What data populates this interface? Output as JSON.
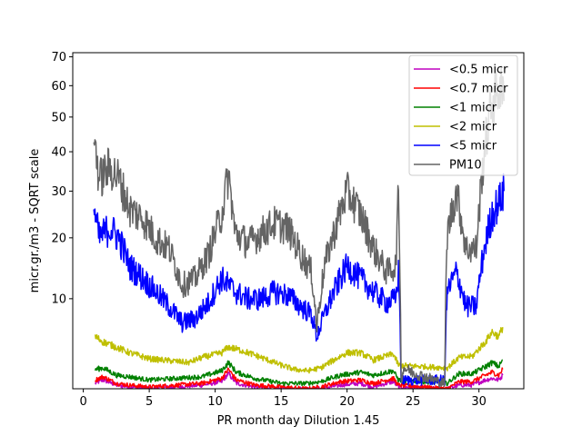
{
  "chart_data": {
    "type": "line",
    "title": "",
    "xlabel": "PR month day  Dilution 1.45",
    "ylabel": "micr.gr./m3 - SQRT scale",
    "y_scale": "sqrt",
    "xlim": [
      -0.8,
      33.4
    ],
    "ylim": [
      1.5,
      71.5
    ],
    "x_ticks": [
      0,
      5,
      10,
      15,
      20,
      25,
      30
    ],
    "y_ticks": [
      10,
      20,
      30,
      40,
      50,
      60,
      70
    ],
    "legend_position": "top-right",
    "grid": false,
    "series": [
      {
        "name": "<0.5 micr",
        "color": "#bf00bf",
        "anchors": [
          [
            0.9,
            1.8
          ],
          [
            1.5,
            2.0
          ],
          [
            2.5,
            1.7
          ],
          [
            3.5,
            1.6
          ],
          [
            5,
            1.5
          ],
          [
            7,
            1.6
          ],
          [
            9,
            1.7
          ],
          [
            10.5,
            1.9
          ],
          [
            11,
            2.4
          ],
          [
            11.6,
            1.8
          ],
          [
            13,
            1.6
          ],
          [
            15,
            1.5
          ],
          [
            17,
            1.5
          ],
          [
            18,
            1.5
          ],
          [
            19.5,
            1.7
          ],
          [
            21,
            1.8
          ],
          [
            22,
            1.6
          ],
          [
            23.5,
            1.9
          ],
          [
            23.9,
            1.6
          ],
          [
            27.6,
            1.5
          ],
          [
            28.5,
            1.7
          ],
          [
            29.5,
            1.7
          ],
          [
            30.5,
            2.0
          ],
          [
            31,
            2.1
          ],
          [
            31.5,
            2.0
          ],
          [
            31.8,
            2.3
          ]
        ]
      },
      {
        "name": "<0.7 micr",
        "color": "#ff0000",
        "anchors": [
          [
            0.9,
            2.0
          ],
          [
            1.5,
            2.2
          ],
          [
            2.5,
            1.8
          ],
          [
            3.5,
            1.7
          ],
          [
            5,
            1.6
          ],
          [
            7,
            1.7
          ],
          [
            9,
            1.8
          ],
          [
            10.5,
            2.1
          ],
          [
            11,
            2.7
          ],
          [
            11.6,
            2.0
          ],
          [
            13,
            1.7
          ],
          [
            15,
            1.6
          ],
          [
            17,
            1.5
          ],
          [
            18,
            1.6
          ],
          [
            19.5,
            1.9
          ],
          [
            21,
            2.0
          ],
          [
            22,
            1.8
          ],
          [
            23.5,
            2.1
          ],
          [
            23.9,
            1.7
          ],
          [
            27.6,
            1.5
          ],
          [
            28.5,
            1.9
          ],
          [
            29.5,
            1.9
          ],
          [
            30.5,
            2.3
          ],
          [
            31,
            2.5
          ],
          [
            31.5,
            2.3
          ],
          [
            31.8,
            2.7
          ]
        ]
      },
      {
        "name": "<1 micr",
        "color": "#008000",
        "anchors": [
          [
            0.9,
            2.7
          ],
          [
            1.5,
            2.8
          ],
          [
            2.5,
            2.3
          ],
          [
            3.5,
            2.2
          ],
          [
            5,
            2.0
          ],
          [
            7,
            2.1
          ],
          [
            9,
            2.2
          ],
          [
            10.5,
            2.6
          ],
          [
            11,
            3.2
          ],
          [
            11.6,
            2.5
          ],
          [
            13,
            2.1
          ],
          [
            15,
            1.8
          ],
          [
            17,
            1.8
          ],
          [
            18,
            1.9
          ],
          [
            19.5,
            2.3
          ],
          [
            21,
            2.5
          ],
          [
            22,
            2.3
          ],
          [
            23.5,
            2.6
          ],
          [
            23.9,
            2.0
          ],
          [
            27.6,
            1.8
          ],
          [
            28.5,
            2.4
          ],
          [
            29.5,
            2.4
          ],
          [
            30.5,
            2.9
          ],
          [
            31,
            3.2
          ],
          [
            31.5,
            2.9
          ],
          [
            31.8,
            3.4
          ]
        ]
      },
      {
        "name": "<2 micr",
        "color": "#bfbf00",
        "anchors": [
          [
            0.9,
            5.5
          ],
          [
            1.5,
            5.0
          ],
          [
            2.5,
            4.5
          ],
          [
            3.5,
            4.0
          ],
          [
            5,
            3.5
          ],
          [
            6,
            3.4
          ],
          [
            7,
            3.3
          ],
          [
            8,
            3.2
          ],
          [
            9,
            3.6
          ],
          [
            10.5,
            4.0
          ],
          [
            11,
            4.5
          ],
          [
            12,
            4.2
          ],
          [
            13,
            3.8
          ],
          [
            14,
            3.4
          ],
          [
            15,
            3.0
          ],
          [
            16,
            2.7
          ],
          [
            17,
            2.6
          ],
          [
            18,
            2.8
          ],
          [
            19,
            3.4
          ],
          [
            20,
            4.0
          ],
          [
            21,
            4.0
          ],
          [
            22,
            3.4
          ],
          [
            23.5,
            3.9
          ],
          [
            23.9,
            3.0
          ],
          [
            27.6,
            2.8
          ],
          [
            28.5,
            3.6
          ],
          [
            29.5,
            3.7
          ],
          [
            30.5,
            5.0
          ],
          [
            31,
            6.0
          ],
          [
            31.5,
            5.5
          ],
          [
            31.8,
            6.5
          ]
        ]
      },
      {
        "name": "<5 micr",
        "color": "#0000ff",
        "anchors": [
          [
            0.8,
            26
          ],
          [
            1.2,
            20
          ],
          [
            2,
            22
          ],
          [
            2.7,
            20
          ],
          [
            3.5,
            15
          ],
          [
            4.5,
            13
          ],
          [
            5.5,
            11
          ],
          [
            6.5,
            9
          ],
          [
            7.5,
            7
          ],
          [
            8.5,
            7.5
          ],
          [
            9.5,
            9.5
          ],
          [
            10.5,
            13
          ],
          [
            11.5,
            11
          ],
          [
            12.5,
            10
          ],
          [
            13.5,
            10
          ],
          [
            14.5,
            11
          ],
          [
            15.5,
            10.5
          ],
          [
            16.5,
            9
          ],
          [
            17.3,
            8
          ],
          [
            17.7,
            5.5
          ],
          [
            18.3,
            8
          ],
          [
            19,
            11
          ],
          [
            20,
            15
          ],
          [
            21,
            13
          ],
          [
            22,
            11
          ],
          [
            23,
            9.5
          ],
          [
            23.7,
            10
          ],
          [
            23.9,
            14
          ],
          [
            24.1,
            2
          ],
          [
            27.4,
            2
          ],
          [
            27.6,
            11
          ],
          [
            28.3,
            14
          ],
          [
            29,
            9
          ],
          [
            29.8,
            9
          ],
          [
            30.4,
            18
          ],
          [
            31,
            25
          ],
          [
            31.6,
            28
          ],
          [
            31.9,
            30
          ]
        ]
      },
      {
        "name": "PM10",
        "color": "#646464",
        "anchors": [
          [
            0.8,
            45
          ],
          [
            1.2,
            33
          ],
          [
            2,
            36
          ],
          [
            2.7,
            33
          ],
          [
            3.5,
            26
          ],
          [
            4.5,
            24
          ],
          [
            5.5,
            20
          ],
          [
            6.5,
            18
          ],
          [
            7.5,
            12
          ],
          [
            8.5,
            13
          ],
          [
            9.5,
            17
          ],
          [
            10.5,
            25
          ],
          [
            11,
            34
          ],
          [
            11.5,
            21
          ],
          [
            12.5,
            19
          ],
          [
            13.5,
            21
          ],
          [
            14.5,
            23
          ],
          [
            15.5,
            22
          ],
          [
            16.5,
            17
          ],
          [
            17.3,
            14
          ],
          [
            17.7,
            6.5
          ],
          [
            18.3,
            15
          ],
          [
            19,
            21
          ],
          [
            20,
            30
          ],
          [
            21,
            25
          ],
          [
            22,
            18
          ],
          [
            23,
            14
          ],
          [
            23.7,
            15
          ],
          [
            23.9,
            30
          ],
          [
            24.1,
            2
          ],
          [
            24.3,
            2.8
          ],
          [
            25.2,
            2.4
          ],
          [
            27.4,
            1.8
          ],
          [
            27.6,
            21
          ],
          [
            28.3,
            30
          ],
          [
            29,
            18
          ],
          [
            29.8,
            18
          ],
          [
            30.4,
            40
          ],
          [
            31,
            55
          ],
          [
            31.6,
            60
          ],
          [
            31.9,
            55
          ]
        ]
      }
    ]
  }
}
